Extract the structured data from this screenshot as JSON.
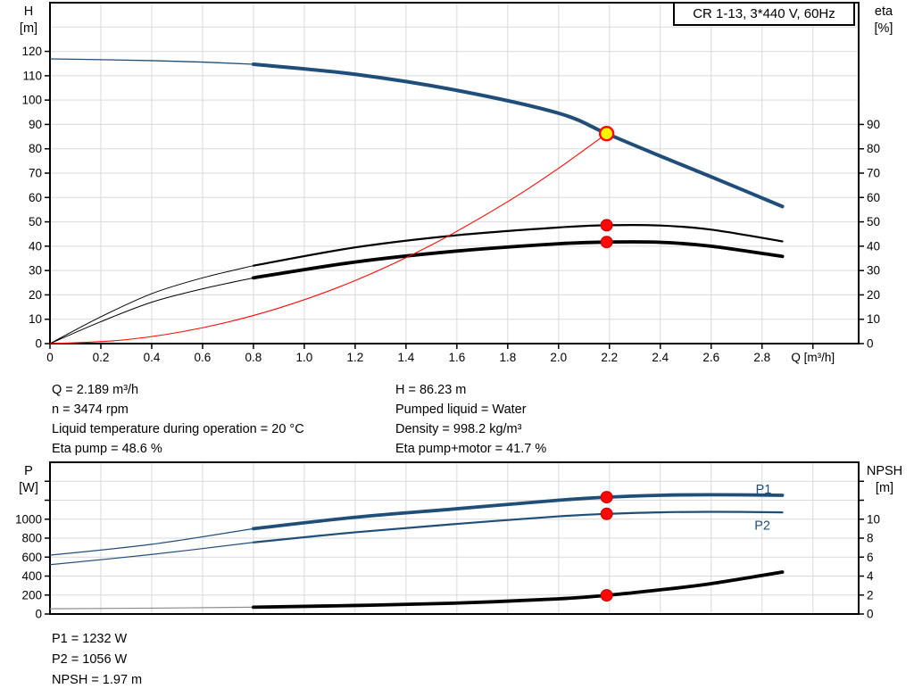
{
  "title_box": {
    "label": "CR 1-13, 3*440 V, 60Hz"
  },
  "info_top": {
    "left": [
      "Q = 2.189 m³/h",
      "n = 3474 rpm",
      "Liquid temperature during operation = 20 °C",
      "Eta pump = 48.6 %"
    ],
    "right": [
      "H = 86.23 m",
      "Pumped liquid = Water",
      "Density = 998.2 kg/m³",
      "Eta pump+motor = 41.7 %"
    ]
  },
  "info_bottom": [
    "P1 = 1232 W",
    "P2 = 1056 W",
    "NPSH = 1.97 m"
  ],
  "colors": {
    "curve_blue": "#1F4E79",
    "curve_red": "#FB0906",
    "curve_black": "#000000",
    "npsh_thin_gray": "#8A8A8A",
    "grid": "#D9D9D9",
    "axis": "#000000",
    "duty_yellow": "#FFF200"
  },
  "chart_data": [
    {
      "type": "line",
      "name": "qh-eta-chart",
      "x": {
        "label": "Q [m³/h]",
        "min": 0,
        "max": 3.18,
        "grid_step": 0.2,
        "tick_step": 0.2,
        "tick_max": 3.0,
        "label_max": 2.8,
        "title_at": 3.0
      },
      "left": {
        "label_lines": [
          "H",
          "[m]"
        ],
        "min": 0,
        "max": 140,
        "step": 10,
        "tick_max": 120,
        "label_max": 120
      },
      "right": {
        "label_lines": [
          "eta",
          "[%]"
        ],
        "min": 0,
        "max": 140,
        "step": 10,
        "tick_max": 90,
        "label_max": 90
      },
      "grid": true,
      "series": [
        {
          "name": "head-curve",
          "axis": "left",
          "color": "#1F4E79",
          "width": 4,
          "thin_width": 1.3,
          "thin_until": 0.8,
          "points": [
            [
              0,
              116.9
            ],
            [
              0.2,
              116.6
            ],
            [
              0.4,
              116.2
            ],
            [
              0.6,
              115.6
            ],
            [
              0.8,
              114.7
            ],
            [
              1.2,
              110.6
            ],
            [
              1.6,
              104.0
            ],
            [
              2.0,
              94.6
            ],
            [
              2.189,
              86.23
            ],
            [
              2.4,
              77.0
            ],
            [
              2.6,
              68.5
            ],
            [
              2.88,
              56.3
            ]
          ]
        },
        {
          "name": "eta-pump-curve",
          "axis": "right",
          "color": "#000000",
          "width": 2.2,
          "thin_width": 1,
          "thin_until": 0.8,
          "points": [
            [
              0,
              0
            ],
            [
              0.2,
              11
            ],
            [
              0.4,
              20.5
            ],
            [
              0.6,
              27
            ],
            [
              0.8,
              32
            ],
            [
              1.2,
              39.5
            ],
            [
              1.6,
              44.5
            ],
            [
              2.0,
              47.7
            ],
            [
              2.189,
              48.6
            ],
            [
              2.4,
              48.5
            ],
            [
              2.6,
              46.8
            ],
            [
              2.88,
              42
            ]
          ]
        },
        {
          "name": "eta-pump-motor-curve",
          "axis": "right",
          "color": "#000000",
          "width": 3.8,
          "thin_width": 1,
          "thin_until": 0.8,
          "points": [
            [
              0,
              0
            ],
            [
              0.2,
              9
            ],
            [
              0.4,
              17
            ],
            [
              0.6,
              22.5
            ],
            [
              0.8,
              27
            ],
            [
              1.2,
              33.5
            ],
            [
              1.6,
              38
            ],
            [
              2.0,
              41
            ],
            [
              2.189,
              41.7
            ],
            [
              2.4,
              41.6
            ],
            [
              2.6,
              40
            ],
            [
              2.88,
              35.8
            ]
          ]
        },
        {
          "name": "system-curve",
          "axis": "left",
          "color": "#FB0906",
          "width": 1.1,
          "points": [
            [
              0,
              0
            ],
            [
              0.3,
              1.6
            ],
            [
              0.6,
              6.5
            ],
            [
              0.9,
              14.6
            ],
            [
              1.2,
              25.9
            ],
            [
              1.5,
              40.5
            ],
            [
              1.8,
              58.3
            ],
            [
              2.0,
              72.0
            ],
            [
              2.189,
              86.23
            ]
          ]
        }
      ],
      "markers": [
        {
          "name": "duty-point",
          "q": 2.189,
          "v": 86.23,
          "axis": "left",
          "r": 7.5,
          "fill": "#FFF200",
          "stroke": "#FB0906",
          "stroke_width": 2.4
        },
        {
          "name": "eta-pump-point",
          "q": 2.189,
          "v": 48.6,
          "axis": "right",
          "r": 6.5,
          "fill": "#FB0906",
          "stroke": "#C00000",
          "stroke_width": 1
        },
        {
          "name": "eta-pump-motor-point",
          "q": 2.189,
          "v": 41.7,
          "axis": "right",
          "r": 6.5,
          "fill": "#FB0906",
          "stroke": "#C00000",
          "stroke_width": 1
        }
      ],
      "labels": []
    },
    {
      "type": "line",
      "name": "power-npsh-chart",
      "x": {
        "label": "",
        "min": 0,
        "max": 3.18,
        "grid_step": 0.2,
        "tick_step": 0,
        "tick_max": 0,
        "label_max": -1,
        "title_at": 0
      },
      "left": {
        "label_lines": [
          "P",
          "[W]"
        ],
        "min": 0,
        "max": 1600,
        "step": 200,
        "tick_max": 1400,
        "label_max": 1000
      },
      "right": {
        "label_lines": [
          "NPSH",
          "[m]"
        ],
        "min": 0,
        "max": 16,
        "step": 2,
        "tick_max": 14,
        "label_max": 10
      },
      "grid": true,
      "series": [
        {
          "name": "p1-curve",
          "axis": "left",
          "color": "#1F4E79",
          "width": 3.8,
          "thin_width": 1.3,
          "thin_until": 0.8,
          "points": [
            [
              0,
              620
            ],
            [
              0.4,
              735
            ],
            [
              0.8,
              900
            ],
            [
              1.2,
              1020
            ],
            [
              1.6,
              1110
            ],
            [
              2.0,
              1200
            ],
            [
              2.189,
              1232
            ],
            [
              2.4,
              1252
            ],
            [
              2.6,
              1258
            ],
            [
              2.88,
              1252
            ]
          ]
        },
        {
          "name": "p2-curve",
          "axis": "left",
          "color": "#1F4E79",
          "width": 2.2,
          "thin_width": 1.2,
          "thin_until": 0.8,
          "points": [
            [
              0,
              520
            ],
            [
              0.4,
              628
            ],
            [
              0.8,
              755
            ],
            [
              1.2,
              862
            ],
            [
              1.6,
              950
            ],
            [
              2.0,
              1030
            ],
            [
              2.189,
              1056
            ],
            [
              2.4,
              1072
            ],
            [
              2.6,
              1078
            ],
            [
              2.88,
              1072
            ]
          ]
        },
        {
          "name": "npsh-curve",
          "axis": "right",
          "color": "#000000",
          "thin_color": "#8A8A8A",
          "width": 3.8,
          "thin_width": 1.2,
          "thin_until": 0.8,
          "points": [
            [
              0,
              0.55
            ],
            [
              0.4,
              0.62
            ],
            [
              0.8,
              0.72
            ],
            [
              1.2,
              0.9
            ],
            [
              1.6,
              1.15
            ],
            [
              2.0,
              1.6
            ],
            [
              2.189,
              1.97
            ],
            [
              2.4,
              2.55
            ],
            [
              2.6,
              3.2
            ],
            [
              2.88,
              4.42
            ]
          ]
        }
      ],
      "markers": [
        {
          "name": "p1-point",
          "q": 2.189,
          "v": 1232,
          "axis": "left",
          "r": 6.5,
          "fill": "#FB0906",
          "stroke": "#C00000",
          "stroke_width": 1
        },
        {
          "name": "p2-point",
          "q": 2.189,
          "v": 1056,
          "axis": "left",
          "r": 6.5,
          "fill": "#FB0906",
          "stroke": "#C00000",
          "stroke_width": 1
        },
        {
          "name": "npsh-point",
          "q": 2.189,
          "v": 1.97,
          "axis": "right",
          "r": 6.5,
          "fill": "#FB0906",
          "stroke": "#C00000",
          "stroke_width": 1
        }
      ],
      "labels": [
        {
          "name": "p1-curve-label",
          "text": "P1",
          "q": 2.775,
          "v": 1270,
          "axis": "left",
          "color": "#1F4E79"
        },
        {
          "name": "p2-curve-label",
          "text": "P2",
          "q": 2.77,
          "v": 890,
          "axis": "left",
          "color": "#1F4E79"
        }
      ]
    }
  ]
}
